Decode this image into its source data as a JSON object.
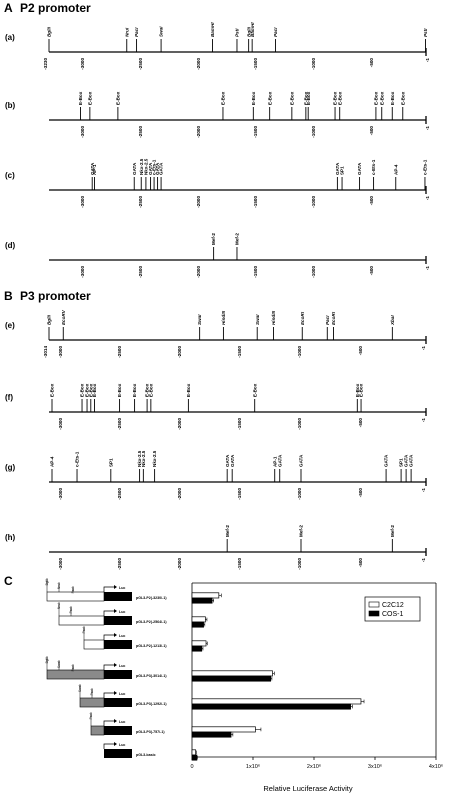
{
  "sections": {
    "A": {
      "letter": "A",
      "title": "P2 promoter"
    },
    "B": {
      "letter": "B",
      "title": "P3 promoter"
    },
    "C": {
      "letter": "C"
    }
  },
  "maps": {
    "P2": {
      "start": -3230,
      "end": -1,
      "ticks": [
        "-3000",
        "-2500",
        "-2000",
        "-1500",
        "-1000",
        "-500",
        "-1"
      ],
      "end_label": "-3230",
      "rows": [
        {
          "label": "(a)",
          "style": "site",
          "sites": [
            {
              "text": "BglII",
              "pos": -3230
            },
            {
              "text": "NruI",
              "pos": -2564
            },
            {
              "text": "PacI",
              "pos": -2480
            },
            {
              "text": "SwaI",
              "pos": -2270
            },
            {
              "text": "BamHI",
              "pos": -1830
            },
            {
              "text": "PstI",
              "pos": -1620
            },
            {
              "text": "BglII",
              "pos": -1520
            },
            {
              "text": "BamHI",
              "pos": -1490
            },
            {
              "text": "PacI",
              "pos": -1290
            },
            {
              "text": "PstI",
              "pos": -5
            }
          ]
        },
        {
          "label": "(b)",
          "style": "motif",
          "sites": [
            {
              "text": "E-Box",
              "pos": -2960
            },
            {
              "text": "E-Box",
              "pos": -2880
            },
            {
              "text": "E-Box",
              "pos": -2640
            },
            {
              "text": "E-Box",
              "pos": -1740
            },
            {
              "text": "E-Box",
              "pos": -1480
            },
            {
              "text": "E-Box",
              "pos": -1340
            },
            {
              "text": "E-Box",
              "pos": -1150
            },
            {
              "text": "E-Box",
              "pos": -1030
            },
            {
              "text": "E-Box",
              "pos": -1010
            },
            {
              "text": "E-Box",
              "pos": -780
            },
            {
              "text": "E-Box",
              "pos": -740
            },
            {
              "text": "E-Box",
              "pos": -430
            },
            {
              "text": "E-Box",
              "pos": -380
            },
            {
              "text": "E-Box",
              "pos": -290
            },
            {
              "text": "E-Box",
              "pos": -200
            }
          ]
        },
        {
          "label": "(c)",
          "style": "motif",
          "sites": [
            {
              "text": "GATA",
              "pos": -2860
            },
            {
              "text": "AP-1",
              "pos": -2840
            },
            {
              "text": "GATA",
              "pos": -2500
            },
            {
              "text": "Nkx-2.5",
              "pos": -2440
            },
            {
              "text": "Nkx-2.5",
              "pos": -2400
            },
            {
              "text": "GATA",
              "pos": -2360
            },
            {
              "text": "c-Ets-1",
              "pos": -2330
            },
            {
              "text": "GATA",
              "pos": -2300
            },
            {
              "text": "GATA",
              "pos": -2270
            },
            {
              "text": "GATA",
              "pos": -760
            },
            {
              "text": "SP1",
              "pos": -720
            },
            {
              "text": "GATA",
              "pos": -570
            },
            {
              "text": "c-Ets-1",
              "pos": -450
            },
            {
              "text": "AP-4",
              "pos": -260
            },
            {
              "text": "c-Ets-1",
              "pos": -10
            }
          ]
        },
        {
          "label": "(d)",
          "style": "motif",
          "sites": [
            {
              "text": "Mef-2",
              "pos": -1820
            },
            {
              "text": "Mef-2",
              "pos": -1620
            }
          ]
        }
      ]
    },
    "P3": {
      "start": -3014,
      "end": -1,
      "ticks": [
        "-3000",
        "-2500",
        "-2000",
        "-1500",
        "-1000",
        "-500",
        "-1"
      ],
      "end_label": "-3014",
      "rows": [
        {
          "label": "(e)",
          "style": "site",
          "sites": [
            {
              "text": "BglII",
              "pos": -3014
            },
            {
              "text": "EcoRV",
              "pos": -2900
            },
            {
              "text": "SwaI",
              "pos": -1810
            },
            {
              "text": "HindIII",
              "pos": -1620
            },
            {
              "text": "SwaI",
              "pos": -1350
            },
            {
              "text": "HindIII",
              "pos": -1220
            },
            {
              "text": "EcoRI",
              "pos": -990
            },
            {
              "text": "PacI",
              "pos": -790
            },
            {
              "text": "EcoRI",
              "pos": -740
            },
            {
              "text": "XbaI",
              "pos": -270
            }
          ]
        },
        {
          "label": "(f)",
          "style": "motif",
          "sites": [
            {
              "text": "E-Box",
              "pos": -2990
            },
            {
              "text": "E-Box",
              "pos": -2750
            },
            {
              "text": "E-Box",
              "pos": -2710
            },
            {
              "text": "E-Box",
              "pos": -2680
            },
            {
              "text": "E-Box",
              "pos": -2650
            },
            {
              "text": "E-Box",
              "pos": -2450
            },
            {
              "text": "E-Box",
              "pos": -2330
            },
            {
              "text": "E-Box",
              "pos": -2230
            },
            {
              "text": "E-Box",
              "pos": -2200
            },
            {
              "text": "E-Box",
              "pos": -1900
            },
            {
              "text": "E-Box",
              "pos": -1370
            },
            {
              "text": "E-Box",
              "pos": -550
            },
            {
              "text": "E-Box",
              "pos": -520
            }
          ]
        },
        {
          "label": "(g)",
          "style": "motif",
          "sites": [
            {
              "text": "AP-4",
              "pos": -2990
            },
            {
              "text": "c-Ets-1",
              "pos": -2790
            },
            {
              "text": "SP1",
              "pos": -2520
            },
            {
              "text": "Nkx-2.5",
              "pos": -2290
            },
            {
              "text": "Nkx-2.5",
              "pos": -2260
            },
            {
              "text": "Nkx-2.5",
              "pos": -2170
            },
            {
              "text": "GATA",
              "pos": -1590
            },
            {
              "text": "GATA",
              "pos": -1550
            },
            {
              "text": "AP-1",
              "pos": -1210
            },
            {
              "text": "GATA",
              "pos": -1170
            },
            {
              "text": "GATA",
              "pos": -1000
            },
            {
              "text": "GATA",
              "pos": -320
            },
            {
              "text": "SP1",
              "pos": -200
            },
            {
              "text": "GATA",
              "pos": -160
            },
            {
              "text": "GATA",
              "pos": -120
            }
          ]
        },
        {
          "label": "(h)",
          "style": "motif",
          "sites": [
            {
              "text": "Mef-2",
              "pos": -1590
            },
            {
              "text": "Mef-2",
              "pos": -1000
            },
            {
              "text": "Mef-2",
              "pos": -270
            }
          ]
        }
      ]
    }
  },
  "constructs": [
    {
      "name": "pGL3-P2(-3230/-1)",
      "insert": "P2-long",
      "sites": [
        "BglII",
        "NruI",
        "PacI"
      ],
      "luc": "Luc"
    },
    {
      "name": "pGL3-P2(-2564/-1)",
      "insert": "P2-mid",
      "sites": [
        "NruI",
        "PacI"
      ],
      "luc": "Luc"
    },
    {
      "name": "pGL3-P2(-1213/-1)",
      "insert": "P2-short",
      "sites": [
        "PacI"
      ],
      "luc": "Luc"
    },
    {
      "name": "pGL3-P3(-3014/-1)",
      "insert": "P3-long",
      "sites": [
        "BglII",
        "SwaI",
        "PacI"
      ],
      "luc": "Luc"
    },
    {
      "name": "pGL3-P3(-1292/-1)",
      "insert": "P3-mid",
      "sites": [
        "SwaI",
        "PacI"
      ],
      "luc": "Luc"
    },
    {
      "name": "pGL3-P3(-757/-1)",
      "insert": "P3-short",
      "sites": [
        "PacI"
      ],
      "luc": "Luc"
    },
    {
      "name": "pGL3-basic",
      "insert": "none",
      "sites": [],
      "luc": "Luc"
    }
  ],
  "chart_data": {
    "type": "bar",
    "orientation": "horizontal",
    "xlabel": "Relative Luciferase Activity",
    "xlim": [
      0,
      4000000
    ],
    "x_ticks": [
      "0",
      "1x10⁶",
      "2x10⁶",
      "3x10⁶",
      "4x10⁶"
    ],
    "categories": [
      "pGL3-P2(-3230/-1)",
      "pGL3-P2(-2564/-1)",
      "pGL3-P2(-1213/-1)",
      "pGL3-P3(-3014/-1)",
      "pGL3-P3(-1292/-1)",
      "pGL3-P3(-757/-1)",
      "pGL3-basic"
    ],
    "series": [
      {
        "name": "C2C12",
        "color": "#ffffff",
        "values": [
          440000,
          220000,
          230000,
          1320000,
          2770000,
          1040000,
          60000
        ],
        "errors": [
          40000,
          25000,
          20000,
          30000,
          50000,
          90000,
          10000
        ]
      },
      {
        "name": "COS-1",
        "color": "#000000",
        "values": [
          330000,
          190000,
          160000,
          1290000,
          2600000,
          640000,
          80000
        ],
        "errors": [
          25000,
          20000,
          20000,
          20000,
          30000,
          30000,
          8000
        ]
      }
    ],
    "legend_position": "top-right",
    "grid": false
  }
}
